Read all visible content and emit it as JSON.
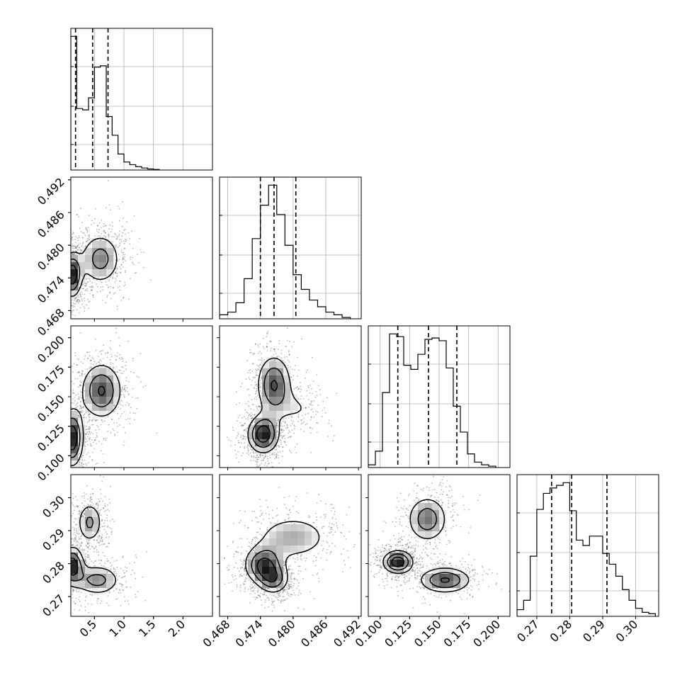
{
  "chart_data": {
    "type": "corner",
    "parameters": [
      {
        "name": "",
        "range": [
          0.1,
          2.5
        ],
        "ticks": [
          "0.5",
          "1.0",
          "1.5",
          "2.0"
        ],
        "tick_values": [
          0.5,
          1.0,
          1.5,
          2.0
        ],
        "quantiles": [
          0.18,
          0.47,
          0.73
        ],
        "hist": {
          "edges": [
            0.1,
            0.2,
            0.3,
            0.4,
            0.5,
            0.6,
            0.7,
            0.8,
            0.9,
            1.0,
            1.1,
            1.2,
            1.3,
            1.4,
            1.5,
            1.6
          ],
          "values": [
            1.0,
            0.46,
            0.45,
            0.54,
            0.77,
            0.78,
            0.4,
            0.26,
            0.12,
            0.06,
            0.04,
            0.025,
            0.015,
            0.008,
            0.004
          ]
        }
      },
      {
        "name": "",
        "range": [
          0.4665,
          0.4925
        ],
        "ticks": [
          "0.468",
          "0.474",
          "0.480",
          "0.486",
          "0.492"
        ],
        "tick_values": [
          0.468,
          0.474,
          0.48,
          0.486,
          0.492
        ],
        "quantiles": [
          0.474,
          0.4765,
          0.4805
        ],
        "hist": {
          "edges": [
            0.4665,
            0.468,
            0.4695,
            0.471,
            0.4725,
            0.474,
            0.4755,
            0.477,
            0.4785,
            0.48,
            0.4815,
            0.483,
            0.4845,
            0.486,
            0.4875,
            0.489,
            0.4905
          ],
          "values": [
            0.03,
            0.05,
            0.12,
            0.3,
            0.6,
            0.85,
            1.0,
            0.78,
            0.55,
            0.33,
            0.22,
            0.14,
            0.09,
            0.05,
            0.03,
            0.01
          ]
        }
      },
      {
        "name": "",
        "range": [
          0.09,
          0.21
        ],
        "ticks": [
          "0.100",
          "0.125",
          "0.150",
          "0.175",
          "0.200"
        ],
        "tick_values": [
          0.1,
          0.125,
          0.15,
          0.175,
          0.2
        ],
        "quantiles": [
          0.115,
          0.141,
          0.165
        ],
        "hist": {
          "edges": [
            0.09,
            0.096,
            0.102,
            0.108,
            0.114,
            0.12,
            0.126,
            0.132,
            0.138,
            0.144,
            0.15,
            0.156,
            0.162,
            0.168,
            0.174,
            0.18,
            0.186,
            0.192,
            0.198
          ],
          "values": [
            0.02,
            0.12,
            0.55,
            0.98,
            0.96,
            0.75,
            0.72,
            0.83,
            0.94,
            0.95,
            0.93,
            0.73,
            0.45,
            0.26,
            0.1,
            0.04,
            0.02,
            0.01
          ]
        }
      },
      {
        "name": "",
        "range": [
          0.264,
          0.307
        ],
        "ticks": [
          "0.27",
          "0.28",
          "0.29",
          "0.30"
        ],
        "tick_values": [
          0.27,
          0.28,
          0.29,
          0.3
        ],
        "quantiles": [
          0.2745,
          0.2806,
          0.2913
        ],
        "hist": {
          "edges": [
            0.264,
            0.266,
            0.268,
            0.27,
            0.272,
            0.274,
            0.276,
            0.278,
            0.28,
            0.282,
            0.284,
            0.286,
            0.288,
            0.29,
            0.292,
            0.294,
            0.296,
            0.298,
            0.3,
            0.302,
            0.304,
            0.306
          ],
          "values": [
            0.05,
            0.12,
            0.45,
            0.8,
            0.92,
            0.96,
            0.98,
            1.0,
            0.79,
            0.57,
            0.53,
            0.6,
            0.6,
            0.47,
            0.39,
            0.3,
            0.2,
            0.12,
            0.06,
            0.03,
            0.02
          ]
        }
      }
    ],
    "pairs": [
      {
        "x": 0,
        "y": 1,
        "modes": [
          {
            "cx": 0.12,
            "cy": 0.4745,
            "sx": 0.1,
            "sy": 0.0025,
            "w": 1.2,
            "rot": 0
          },
          {
            "cx": 0.6,
            "cy": 0.4775,
            "sx": 0.22,
            "sy": 0.003,
            "w": 0.8,
            "rot": 0
          }
        ]
      },
      {
        "x": 0,
        "y": 2,
        "modes": [
          {
            "cx": 0.12,
            "cy": 0.115,
            "sx": 0.12,
            "sy": 0.015,
            "w": 1.1,
            "rot": 0.5
          },
          {
            "cx": 0.62,
            "cy": 0.155,
            "sx": 0.22,
            "sy": 0.015,
            "w": 0.9,
            "rot": 0.4
          }
        ]
      },
      {
        "x": 0,
        "y": 3,
        "modes": [
          {
            "cx": 0.12,
            "cy": 0.2795,
            "sx": 0.12,
            "sy": 0.0035,
            "w": 1.2,
            "rot": 0
          },
          {
            "cx": 0.55,
            "cy": 0.275,
            "sx": 0.25,
            "sy": 0.003,
            "w": 0.8,
            "rot": -0.1
          },
          {
            "cx": 0.42,
            "cy": 0.2925,
            "sx": 0.14,
            "sy": 0.004,
            "w": 0.75,
            "rot": 0
          }
        ]
      },
      {
        "x": 1,
        "y": 2,
        "modes": [
          {
            "cx": 0.4745,
            "cy": 0.118,
            "sx": 0.0018,
            "sy": 0.01,
            "w": 1.2,
            "rot": 0
          },
          {
            "cx": 0.4765,
            "cy": 0.16,
            "sx": 0.002,
            "sy": 0.016,
            "w": 1.0,
            "rot": 0
          },
          {
            "cx": 0.481,
            "cy": 0.14,
            "sx": 0.0025,
            "sy": 0.01,
            "w": 0.35,
            "rot": 0
          }
        ]
      },
      {
        "x": 1,
        "y": 3,
        "modes": [
          {
            "cx": 0.4745,
            "cy": 0.2795,
            "sx": 0.0022,
            "sy": 0.0035,
            "w": 1.1,
            "rot": 0.3
          },
          {
            "cx": 0.4765,
            "cy": 0.275,
            "sx": 0.0018,
            "sy": 0.0028,
            "w": 0.8,
            "rot": 0
          },
          {
            "cx": 0.48,
            "cy": 0.288,
            "sx": 0.0045,
            "sy": 0.0045,
            "w": 0.7,
            "rot": 0.6
          }
        ]
      },
      {
        "x": 2,
        "y": 3,
        "modes": [
          {
            "cx": 0.115,
            "cy": 0.2805,
            "sx": 0.008,
            "sy": 0.0022,
            "w": 1.2,
            "rot": 0
          },
          {
            "cx": 0.155,
            "cy": 0.275,
            "sx": 0.014,
            "sy": 0.0025,
            "w": 1.0,
            "rot": -0.2
          },
          {
            "cx": 0.14,
            "cy": 0.2935,
            "sx": 0.011,
            "sy": 0.0045,
            "w": 0.85,
            "rot": 0.2
          }
        ]
      }
    ],
    "grid": true,
    "legend": "none"
  }
}
